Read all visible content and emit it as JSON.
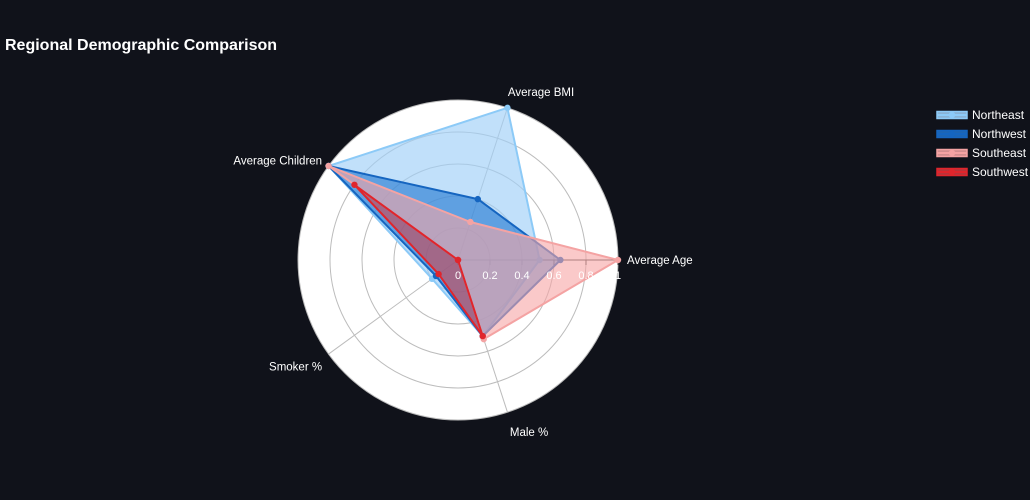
{
  "chart_data": {
    "type": "radar",
    "title": "Regional Demographic Comparison",
    "axes": [
      "Average Age",
      "Average BMI",
      "Average Children",
      "Smoker %",
      "Male %"
    ],
    "radial_range": [
      0,
      1
    ],
    "radial_ticks": [
      0,
      0.2,
      0.4,
      0.6,
      0.8,
      1
    ],
    "radial_tick_labels": [
      "0",
      "0.2",
      "0.4",
      "0.6",
      "0.8",
      "1"
    ],
    "grid": true,
    "legend_position": "top-right",
    "series": [
      {
        "name": "Northeast",
        "values": [
          0.51,
          1.0,
          1.0,
          0.2,
          0.5
        ],
        "line_color": "#8ccaf7",
        "fill_color": "#9fd0f8",
        "fill_opacity": 0.65
      },
      {
        "name": "Northwest",
        "values": [
          0.64,
          0.4,
          1.0,
          0.17,
          0.5
        ],
        "line_color": "#1565c0",
        "fill_color": "#1e74d0",
        "fill_opacity": 0.6
      },
      {
        "name": "Southeast",
        "values": [
          1.0,
          0.25,
          1.0,
          0.0,
          0.52
        ],
        "line_color": "#f4a3a3",
        "fill_color": "#f6a5a5",
        "fill_opacity": 0.6
      },
      {
        "name": "Southwest",
        "values": [
          0.0,
          0.0,
          0.8,
          0.15,
          0.5
        ],
        "line_color": "#e0252c",
        "fill_color": "#d83a3f",
        "fill_opacity": 0.55
      }
    ]
  }
}
